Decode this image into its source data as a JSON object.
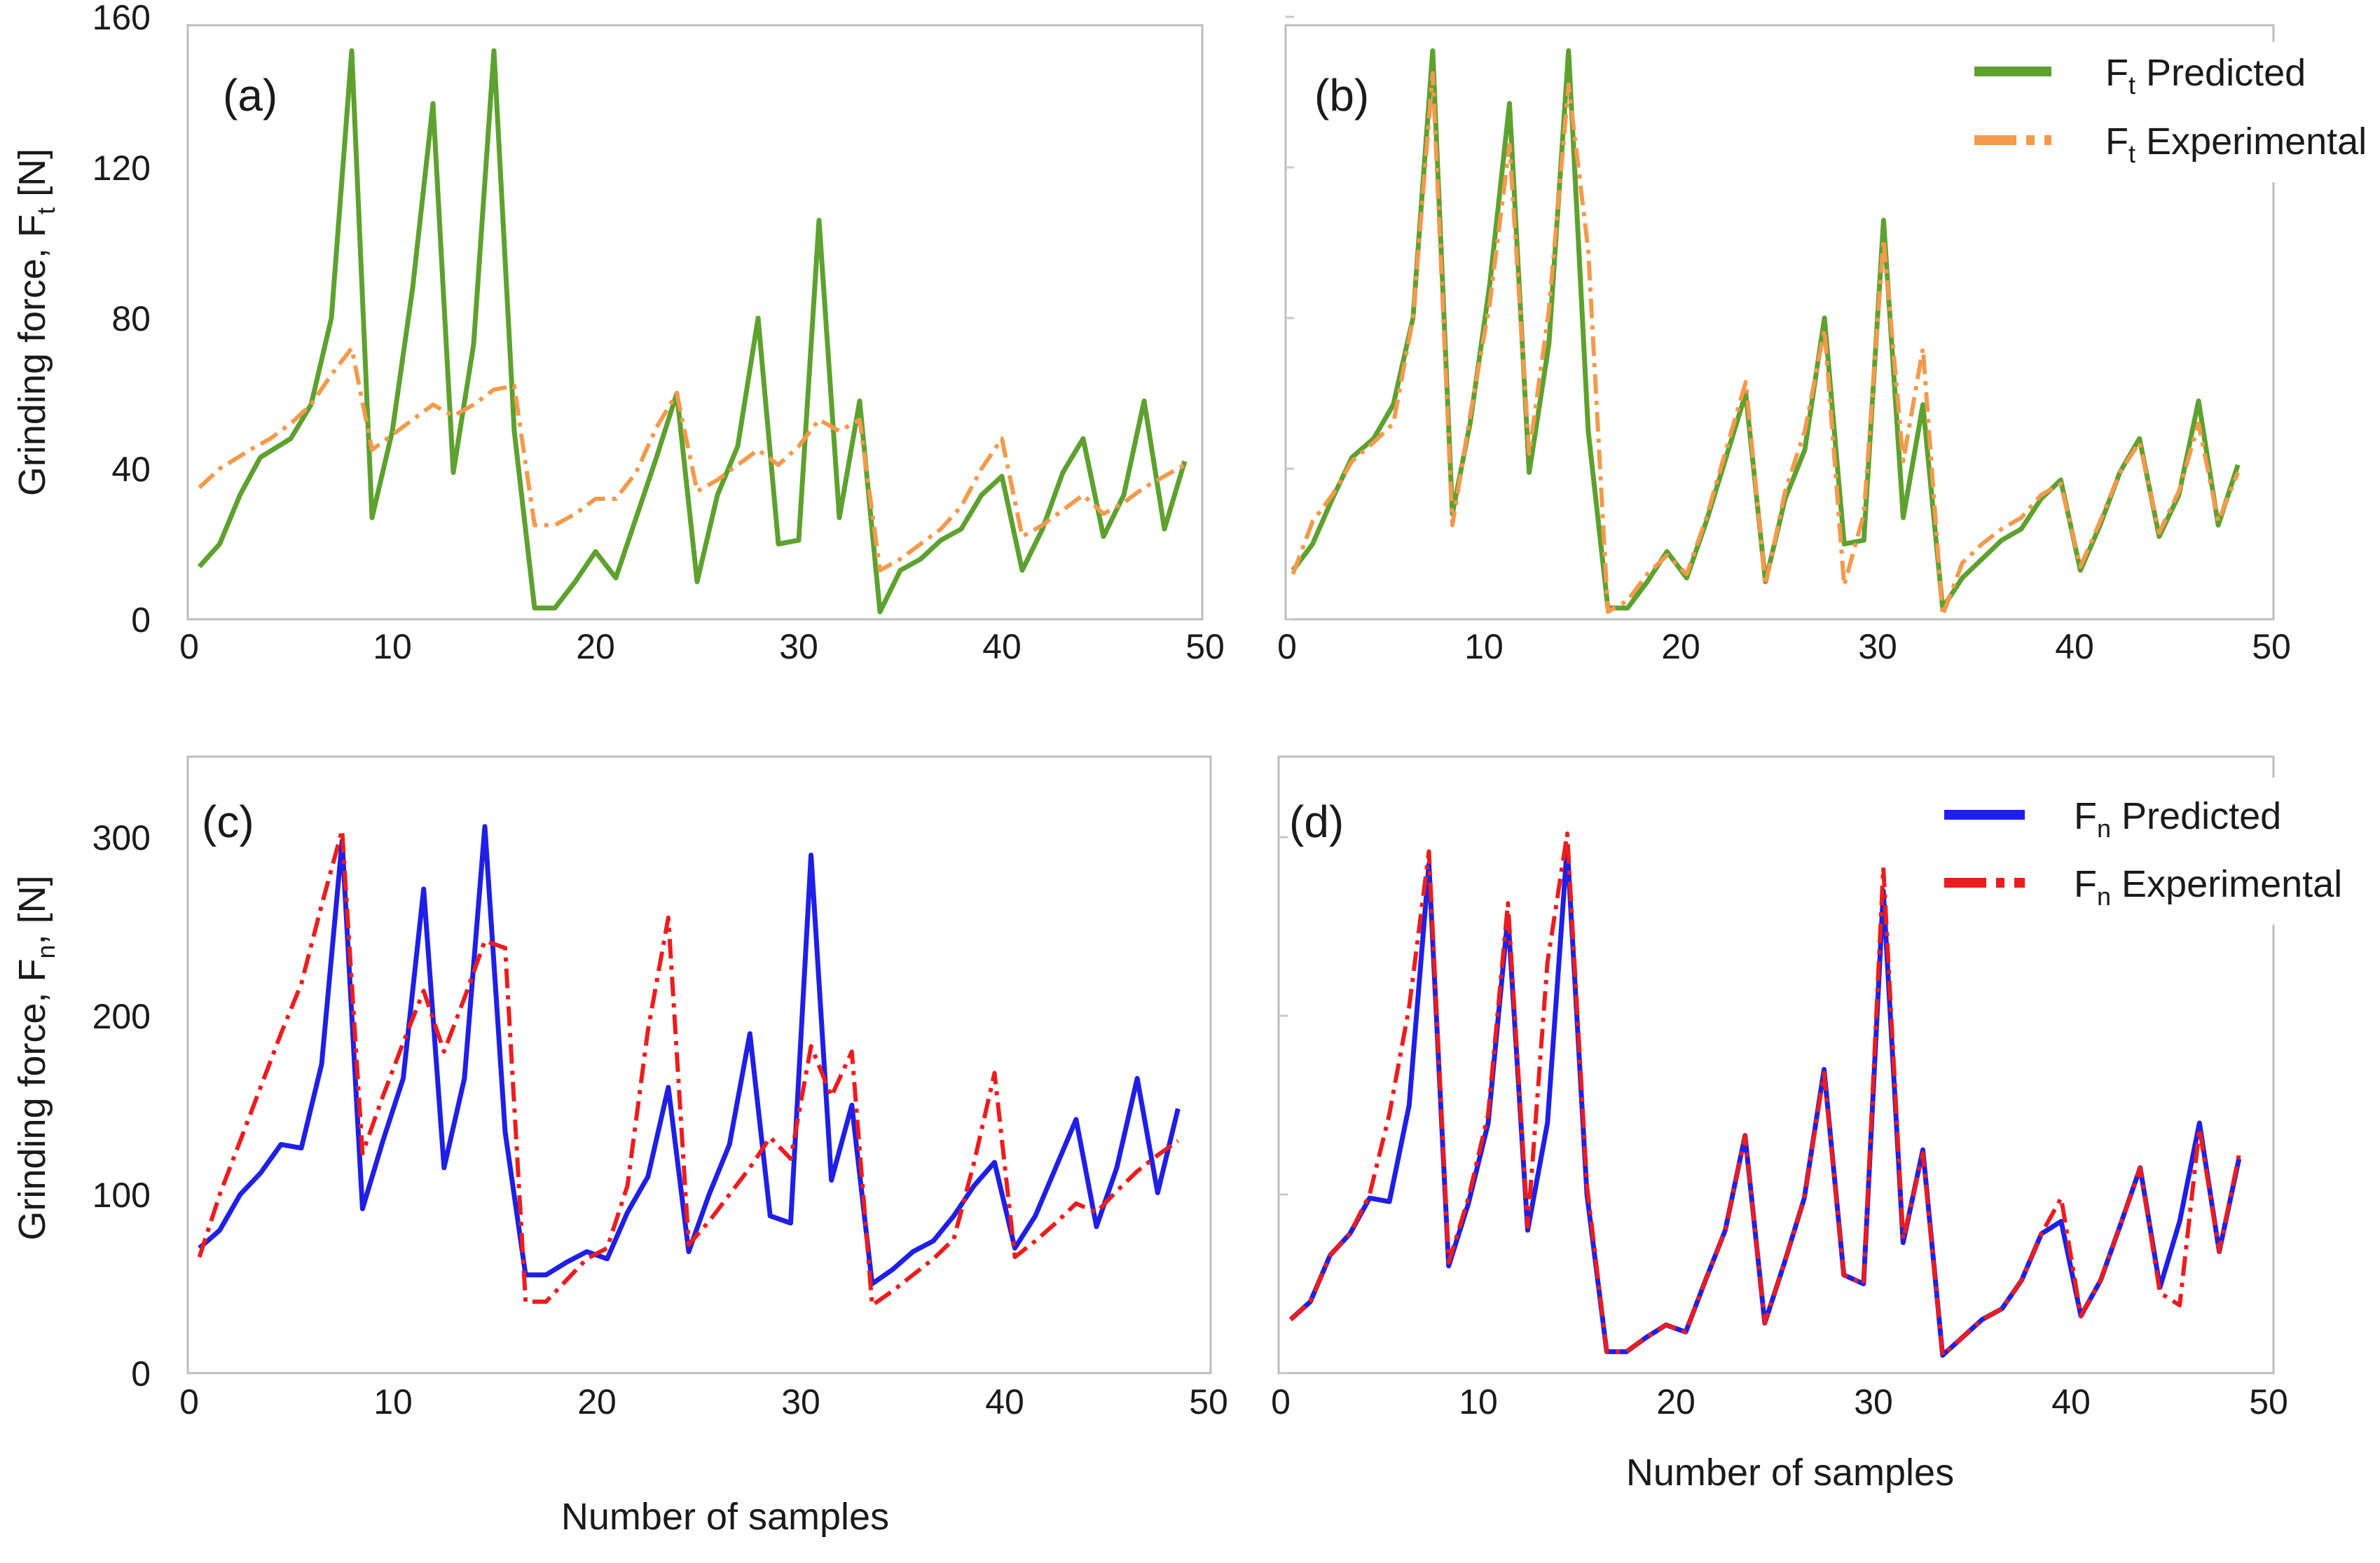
{
  "figure": {
    "colors": {
      "ft_predicted": "#5da12e",
      "ft_experimental": "#f39a4c",
      "fn_predicted": "#1f1fe8",
      "fn_experimental": "#ee1c1c",
      "frame": "#bdbdbd"
    },
    "y_label_top": {
      "main": "Grinding force, F",
      "sub": "t",
      "unit": " [N]"
    },
    "y_label_bottom": {
      "main": "Grinding force, F",
      "sub": "n",
      "unit": ", [N]"
    },
    "x_label_bottom_left": "Number of samples",
    "x_label_bottom_right": "Number of samples",
    "legend_top": [
      {
        "prefix": "F",
        "sub": "t",
        "text": " Predicted"
      },
      {
        "prefix": "F",
        "sub": "t",
        "text": " Experimental"
      }
    ],
    "legend_bottom": [
      {
        "prefix": "F",
        "sub": "n",
        "text": " Predicted"
      },
      {
        "prefix": "F",
        "sub": "n",
        "text": " Experimental"
      }
    ]
  },
  "chart_data": [
    {
      "panel": "(a)",
      "type": "line",
      "xlim": [
        0,
        50
      ],
      "ylim": [
        0,
        160
      ],
      "xticks": [
        0,
        10,
        20,
        30,
        40,
        50
      ],
      "yticks": [
        0,
        40,
        80,
        120,
        160
      ],
      "series": [
        {
          "key": "ft_predicted",
          "style": "solid",
          "x": [
            0.5,
            1.5,
            2.5,
            3.5,
            5,
            6,
            7,
            8,
            9,
            10,
            11,
            12,
            13,
            14,
            15,
            16,
            17,
            18,
            19,
            20,
            21,
            22,
            23,
            24,
            25,
            26,
            27,
            28,
            29,
            30,
            31,
            32,
            33,
            34,
            35,
            36,
            37,
            38,
            39,
            40,
            41,
            42,
            43,
            44,
            45,
            46,
            47,
            48,
            49
          ],
          "y": [
            14,
            20,
            33,
            43,
            48,
            57,
            80,
            151,
            27,
            50,
            88,
            137,
            39,
            73,
            151,
            50,
            3,
            3,
            10,
            18,
            11,
            27,
            43,
            60,
            10,
            33,
            46,
            80,
            20,
            21,
            106,
            27,
            58,
            2,
            13,
            16,
            21,
            24,
            33,
            38,
            13,
            24,
            39,
            48,
            22,
            33,
            58,
            24,
            42
          ]
        },
        {
          "key": "ft_experimental",
          "style": "dashdot",
          "x": [
            0.5,
            1.5,
            3,
            4,
            5,
            6,
            7,
            8,
            9,
            10,
            11,
            12,
            13,
            14,
            15,
            16,
            17,
            18,
            19,
            20,
            21,
            22,
            23,
            24,
            25,
            26,
            27,
            28,
            29,
            30,
            31,
            32,
            33,
            34,
            35,
            36,
            37,
            38,
            39,
            40,
            41,
            42,
            43,
            44,
            45,
            46,
            47,
            48,
            49
          ],
          "y": [
            35,
            40,
            45,
            48,
            52,
            57,
            65,
            72,
            45,
            49,
            53,
            57,
            54,
            57,
            61,
            62,
            25,
            25,
            28,
            32,
            32,
            39,
            51,
            60,
            34,
            37,
            41,
            45,
            41,
            46,
            53,
            50,
            53,
            13,
            16,
            20,
            24,
            30,
            40,
            48,
            22,
            25,
            29,
            33,
            28,
            31,
            35,
            38,
            41
          ]
        }
      ]
    },
    {
      "panel": "(b)",
      "type": "line",
      "xlim": [
        0,
        50
      ],
      "ylim": [
        0,
        160
      ],
      "xticks": [
        0,
        10,
        20,
        30,
        40,
        50
      ],
      "yticks": [
        0,
        40,
        80,
        120,
        160
      ],
      "series": [
        {
          "key": "ft_predicted",
          "style": "solid",
          "x": [
            0.3,
            1.3,
            2.3,
            3.3,
            4.4,
            5.4,
            6.4,
            7.4,
            8.4,
            9.3,
            10.3,
            11.3,
            12.3,
            13.3,
            14.3,
            15.3,
            16.3,
            17.3,
            18.3,
            19.3,
            20.3,
            21.3,
            22.3,
            23.3,
            24.3,
            25.3,
            26.3,
            27.3,
            28.3,
            29.3,
            30.3,
            31.3,
            32.3,
            33.3,
            34.3,
            35.3,
            36.3,
            37.3,
            38.3,
            39.3,
            40.3,
            41.3,
            42.3,
            43.3,
            44.3,
            45.3,
            46.3,
            47.3,
            48.3
          ],
          "y": [
            13,
            20,
            32,
            43,
            48,
            57,
            80,
            151,
            28,
            52,
            89,
            137,
            39,
            73,
            151,
            50,
            3,
            3,
            10,
            18,
            11,
            26,
            43,
            60,
            10,
            32,
            45,
            80,
            20,
            21,
            106,
            27,
            57,
            3,
            11,
            16,
            21,
            24,
            32,
            37,
            13,
            25,
            39,
            48,
            22,
            33,
            58,
            25,
            41
          ]
        },
        {
          "key": "ft_experimental",
          "style": "dashdot",
          "x": [
            0.3,
            1.3,
            2.3,
            3.3,
            4.4,
            5.4,
            6.4,
            7.4,
            8.4,
            9.3,
            10.3,
            11.3,
            12.3,
            13.3,
            14.3,
            15.3,
            16.3,
            17.3,
            18.3,
            19.3,
            20.3,
            21.3,
            22.3,
            23.3,
            24.3,
            25.3,
            26.3,
            27.3,
            28.3,
            29.3,
            30.3,
            31.3,
            32.3,
            33.3,
            34.3,
            35.3,
            36.3,
            37.3,
            38.3,
            39.3,
            40.3,
            41.3,
            42.3,
            43.3,
            44.3,
            45.3,
            46.3,
            47.3,
            48.3
          ],
          "y": [
            12,
            26,
            33,
            42,
            47,
            52,
            80,
            145,
            25,
            54,
            84,
            126,
            44,
            82,
            142,
            98,
            2,
            5,
            12,
            17,
            12,
            27,
            45,
            63,
            9,
            34,
            50,
            77,
            9,
            28,
            101,
            42,
            72,
            1,
            15,
            20,
            24,
            27,
            33,
            36,
            14,
            26,
            39,
            47,
            23,
            34,
            52,
            26,
            39
          ]
        }
      ]
    },
    {
      "panel": "(c)",
      "type": "line",
      "xlim": [
        0,
        50
      ],
      "ylim": [
        0,
        340
      ],
      "xticks": [
        0,
        10,
        20,
        30,
        40,
        50
      ],
      "yticks": [
        0,
        100,
        200,
        300
      ],
      "series": [
        {
          "key": "fn_predicted",
          "style": "solid",
          "x": [
            0.5,
            1.5,
            2.5,
            3.5,
            4.5,
            5.5,
            6.5,
            7.5,
            8.5,
            9.5,
            10.5,
            11.5,
            12.5,
            13.5,
            14.5,
            15.5,
            16.5,
            17.5,
            18.5,
            19.5,
            20.5,
            21.5,
            22.5,
            23.5,
            24.5,
            25.5,
            26.5,
            27.5,
            28.5,
            29.5,
            30.5,
            31.5,
            32.5,
            33.5,
            34.5,
            35.5,
            36.5,
            37.5,
            38.5,
            39.5,
            40.5,
            41.5,
            42.5,
            43.5,
            44.5,
            45.5,
            46.5,
            47.5,
            48.5
          ],
          "y": [
            70,
            80,
            100,
            112,
            128,
            126,
            173,
            298,
            92,
            130,
            165,
            271,
            115,
            165,
            306,
            135,
            55,
            55,
            62,
            68,
            64,
            90,
            110,
            160,
            68,
            100,
            128,
            190,
            88,
            84,
            290,
            108,
            150,
            50,
            58,
            68,
            74,
            88,
            105,
            118,
            70,
            88,
            115,
            142,
            82,
            115,
            165,
            101,
            148
          ]
        },
        {
          "key": "fn_experimental",
          "style": "dashdot",
          "x": [
            0.5,
            1.5,
            2.5,
            3.5,
            4.5,
            5.5,
            6.5,
            7.5,
            8.5,
            9.5,
            10.5,
            11.5,
            12.5,
            13.5,
            14.5,
            15.5,
            16.5,
            17.5,
            18.5,
            19.5,
            20.5,
            21.5,
            22.5,
            23.5,
            24.5,
            25.5,
            26.5,
            27.5,
            28.5,
            29.5,
            30.5,
            31.5,
            32.5,
            33.5,
            34.5,
            35.5,
            36.5,
            37.5,
            38.5,
            39.5,
            40.5,
            41.5,
            42.5,
            43.5,
            44.5,
            45.5,
            46.5,
            47.5,
            48.5
          ],
          "y": [
            65,
            100,
            130,
            160,
            190,
            218,
            262,
            304,
            123,
            155,
            185,
            214,
            180,
            210,
            242,
            238,
            40,
            40,
            52,
            64,
            70,
            105,
            192,
            255,
            72,
            85,
            100,
            115,
            132,
            120,
            183,
            155,
            180,
            38,
            46,
            55,
            64,
            75,
            118,
            168,
            65,
            74,
            84,
            95,
            90,
            102,
            113,
            122,
            130
          ]
        }
      ]
    },
    {
      "panel": "(d)",
      "type": "line",
      "xlim": [
        0,
        50
      ],
      "ylim": [
        0,
        340
      ],
      "xticks": [
        0,
        10,
        20,
        30,
        40,
        50
      ],
      "yticks": [
        0,
        100,
        200,
        300
      ],
      "series": [
        {
          "key": "fn_predicted",
          "style": "solid",
          "x": [
            0.5,
            1.5,
            2.5,
            3.5,
            4.5,
            5.5,
            6.5,
            7.5,
            8.5,
            9.5,
            10.5,
            11.5,
            12.5,
            13.5,
            14.5,
            15.5,
            16.5,
            17.5,
            18.5,
            19.5,
            20.5,
            21.5,
            22.5,
            23.5,
            24.5,
            25.5,
            26.5,
            27.5,
            28.5,
            29.5,
            30.5,
            31.5,
            32.5,
            33.5,
            34.5,
            35.5,
            36.5,
            37.5,
            38.5,
            39.5,
            40.5,
            41.5,
            42.5,
            43.5,
            44.5,
            45.5,
            46.5,
            47.5,
            48.5
          ],
          "y": [
            30,
            40,
            66,
            78,
            98,
            96,
            150,
            285,
            60,
            95,
            140,
            256,
            80,
            140,
            295,
            100,
            12,
            12,
            20,
            27,
            23,
            52,
            80,
            133,
            28,
            62,
            98,
            170,
            55,
            50,
            270,
            73,
            125,
            10,
            20,
            30,
            36,
            52,
            78,
            85,
            32,
            52,
            83,
            115,
            48,
            85,
            140,
            68,
            120
          ]
        },
        {
          "key": "fn_experimental",
          "style": "dashdot",
          "x": [
            0.5,
            1.5,
            2.5,
            3.5,
            4.5,
            5.5,
            6.5,
            7.5,
            8.5,
            9.5,
            10.5,
            11.5,
            12.5,
            13.5,
            14.5,
            15.5,
            16.5,
            17.5,
            18.5,
            19.5,
            20.5,
            21.5,
            22.5,
            23.5,
            24.5,
            25.5,
            26.5,
            27.5,
            28.5,
            29.5,
            30.5,
            31.5,
            32.5,
            33.5,
            34.5,
            35.5,
            36.5,
            37.5,
            38.5,
            39.5,
            40.5,
            41.5,
            42.5,
            43.5,
            44.5,
            45.5,
            46.5,
            47.5,
            48.5
          ],
          "y": [
            30,
            40,
            66,
            78,
            100,
            145,
            205,
            292,
            62,
            98,
            145,
            263,
            82,
            230,
            302,
            105,
            12,
            12,
            20,
            27,
            23,
            52,
            80,
            133,
            28,
            62,
            98,
            168,
            55,
            50,
            283,
            75,
            123,
            10,
            20,
            30,
            36,
            52,
            78,
            98,
            32,
            52,
            83,
            115,
            45,
            38,
            137,
            68,
            122
          ]
        }
      ]
    }
  ]
}
